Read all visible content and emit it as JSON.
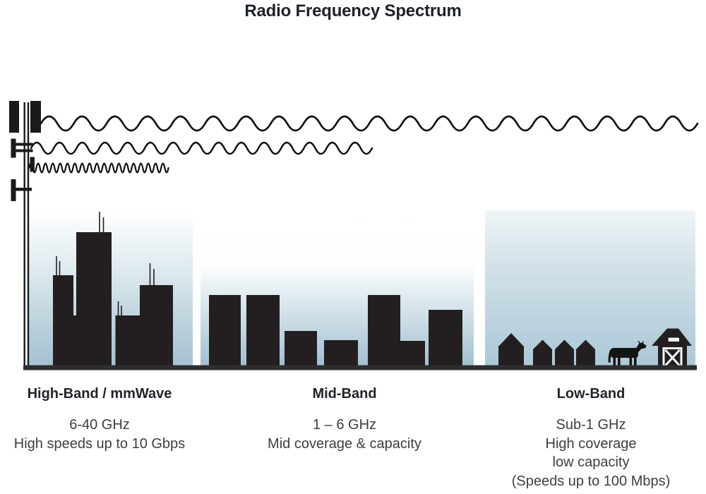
{
  "title": "Radio Frequency Spectrum",
  "colors": {
    "ink": "#231f20",
    "title_text": "#1c212b",
    "heading_text": "#25222a",
    "body_text": "#3e3e40",
    "sky_top": "#ffffff",
    "sky_bottom": "#a4c2d2",
    "ground": "#2e2e2e"
  },
  "tower": {
    "icon": "cell-tower-icon"
  },
  "waves": [
    {
      "icon": "long-wavelength-wave-icon",
      "band": "Low-Band",
      "reach": "longest"
    },
    {
      "icon": "medium-wavelength-wave-icon",
      "band": "Mid-Band",
      "reach": "medium"
    },
    {
      "icon": "short-wavelength-wave-icon",
      "band": "High-Band",
      "reach": "shortest"
    }
  ],
  "bands": [
    {
      "name": "High-Band / mmWave",
      "range": "6-40 GHz",
      "detail1": "High speeds up to 10 Gbps",
      "scene": "city-skyscrapers-icon"
    },
    {
      "name": "Mid-Band",
      "range": "1 – 6 GHz",
      "detail1": "Mid coverage & capacity",
      "scene": "mid-rise-buildings-icon"
    },
    {
      "name": "Low-Band",
      "range": "Sub-1 GHz",
      "detail1": "High coverage",
      "detail2": "low capacity",
      "detail3": "(Speeds up to 100 Mbps)",
      "scene": "farm-houses-cow-barn-icon"
    }
  ]
}
